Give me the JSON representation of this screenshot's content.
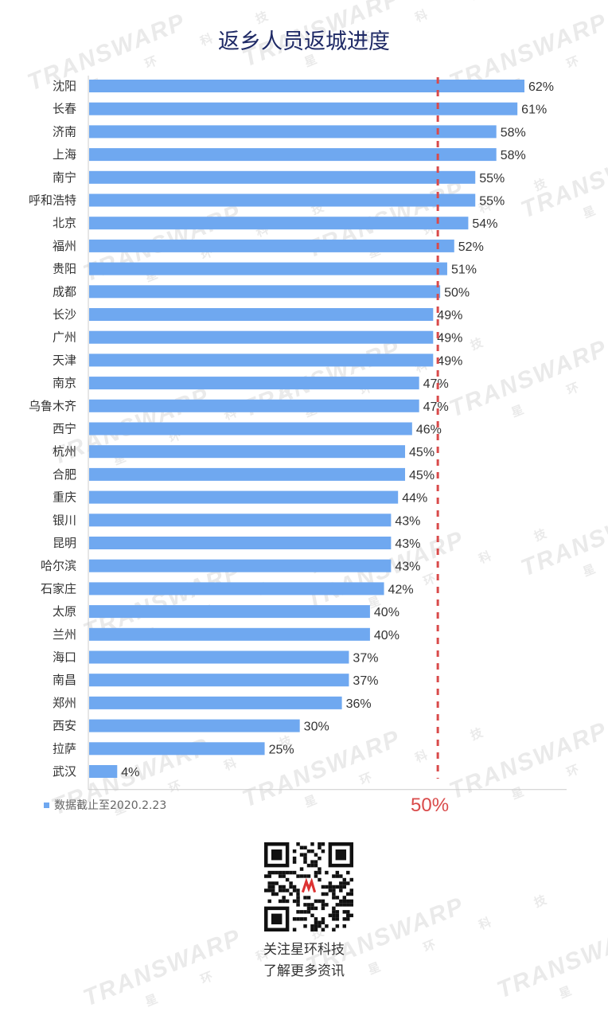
{
  "chart_data": {
    "type": "bar",
    "orientation": "horizontal",
    "title": "返乡人员返城进度",
    "categories": [
      "沈阳",
      "长春",
      "济南",
      "上海",
      "南宁",
      "呼和浩特",
      "北京",
      "福州",
      "贵阳",
      "成都",
      "长沙",
      "广州",
      "天津",
      "南京",
      "乌鲁木齐",
      "西宁",
      "杭州",
      "合肥",
      "重庆",
      "银川",
      "昆明",
      "哈尔滨",
      "石家庄",
      "太原",
      "兰州",
      "海口",
      "南昌",
      "郑州",
      "西安",
      "拉萨",
      "武汉"
    ],
    "values": [
      62,
      61,
      58,
      58,
      55,
      55,
      54,
      52,
      51,
      50,
      49,
      49,
      49,
      47,
      47,
      46,
      45,
      45,
      44,
      43,
      43,
      43,
      42,
      40,
      40,
      37,
      37,
      36,
      30,
      25,
      4
    ],
    "data_labels": [
      "62%",
      "61%",
      "58%",
      "58%",
      "55%",
      "55%",
      "54%",
      "52%",
      "51%",
      "50%",
      "49%",
      "49%",
      "49%",
      "47%",
      "47%",
      "46%",
      "45%",
      "45%",
      "44%",
      "43%",
      "43%",
      "43%",
      "42%",
      "40%",
      "40%",
      "37%",
      "37%",
      "36%",
      "30%",
      "25%",
      "4%"
    ],
    "xlim": [
      0,
      62
    ],
    "reference_line": {
      "value": 50,
      "label": "50%",
      "color": "#d94a4a",
      "style": "dashed"
    },
    "legend": {
      "label": "数据截止至2020.2.23",
      "placement": "bottom-left"
    },
    "bar_color": "#6fa8f0",
    "axis_color": "#cccccc",
    "grid": false
  },
  "watermark": {
    "text": "TRANSWARP",
    "chars": "星环科技"
  },
  "footer": {
    "qr_icon": "qr-code-icon",
    "caption_line1": "关注星环科技",
    "caption_line2": "了解更多资讯"
  }
}
